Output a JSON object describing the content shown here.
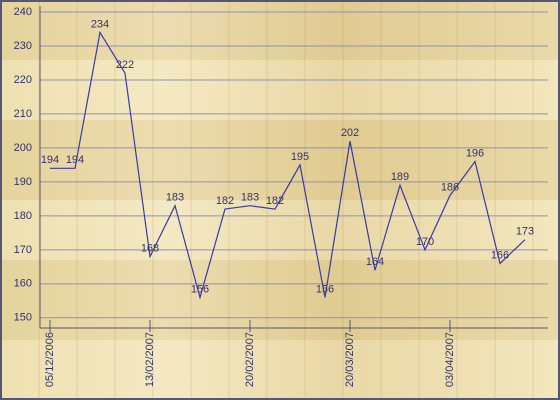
{
  "chart_data": {
    "type": "line",
    "categories": [
      "05/12/2006",
      null,
      null,
      null,
      "13/02/2007",
      null,
      null,
      null,
      "20/02/2007",
      null,
      null,
      null,
      "20/03/2007",
      null,
      null,
      null,
      "03/04/2007",
      null,
      null,
      null
    ],
    "values": [
      194,
      194,
      234,
      222,
      168,
      183,
      156,
      182,
      183,
      182,
      195,
      156,
      202,
      164,
      189,
      170,
      186,
      196,
      166,
      173
    ],
    "color": "#3a3aa8",
    "ylim": [
      147,
      240
    ],
    "yticks": [
      150,
      160,
      170,
      180,
      190,
      200,
      210,
      220,
      230,
      240
    ],
    "grid": true
  }
}
